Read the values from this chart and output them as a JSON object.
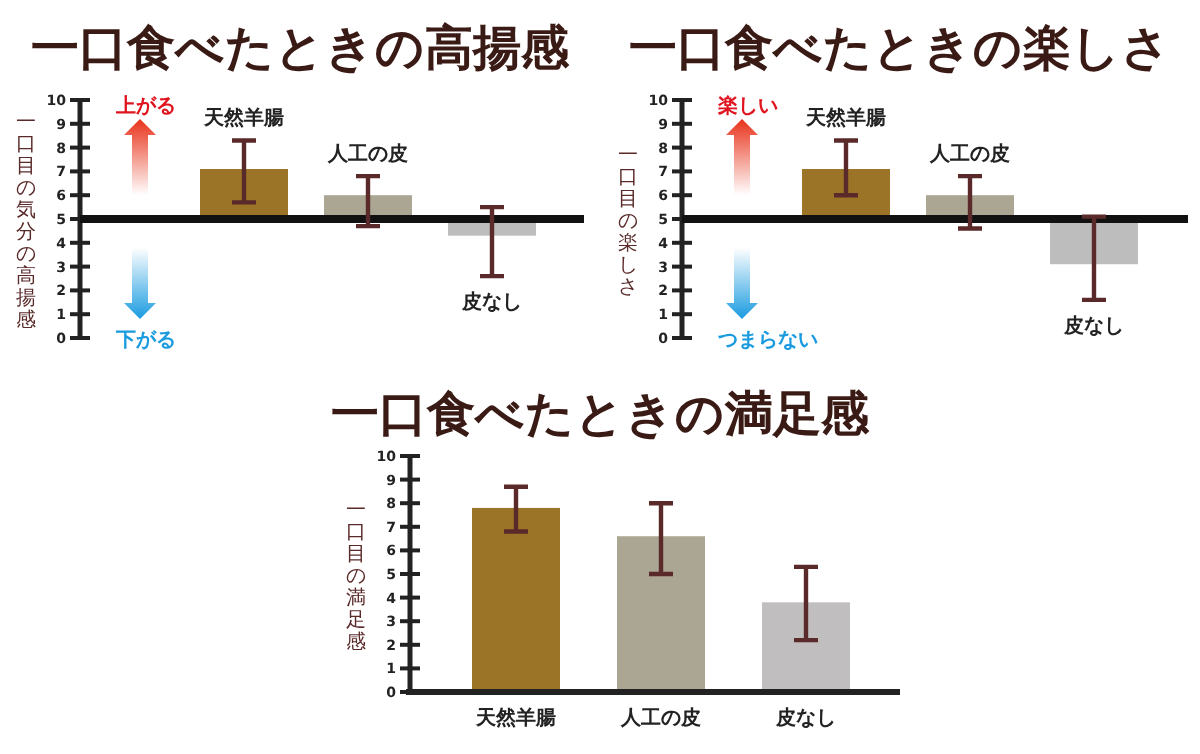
{
  "chart_data": [
    {
      "type": "bar",
      "title": "一口食べたときの高揚感",
      "ylabel": "一口目の気分の高揚感",
      "categories": [
        "天然羊腸",
        "人工の皮",
        "皮なし"
      ],
      "base": [
        5,
        5,
        5
      ],
      "values": [
        2.1,
        1.0,
        -0.7
      ],
      "errors": [
        [
          5.7,
          8.3
        ],
        [
          4.7,
          6.8
        ],
        [
          2.6,
          5.5
        ]
      ],
      "colors": [
        "#9b7428",
        "#aba593",
        "#bdbdbd"
      ],
      "ylim": [
        0,
        10
      ],
      "yticks": [
        0,
        1,
        2,
        3,
        4,
        5,
        6,
        7,
        8,
        9,
        10
      ],
      "ref_lines": [
        {
          "axis": "y",
          "value": 5,
          "color": "#111111"
        }
      ],
      "annotations": [
        "上がる",
        "下がる"
      ],
      "grid": false
    },
    {
      "type": "bar",
      "title": "一口食べたときの楽しさ",
      "ylabel": "一口目の楽しさ",
      "categories": [
        "天然羊腸",
        "人工の皮",
        "皮なし"
      ],
      "base": [
        5,
        5,
        5
      ],
      "values": [
        2.1,
        1.0,
        -1.9
      ],
      "errors": [
        [
          6.0,
          8.3
        ],
        [
          4.6,
          6.8
        ],
        [
          1.6,
          5.1
        ]
      ],
      "colors": [
        "#9b7428",
        "#aba593",
        "#bdbdbd"
      ],
      "ylim": [
        0,
        10
      ],
      "yticks": [
        0,
        1,
        2,
        3,
        4,
        5,
        6,
        7,
        8,
        9,
        10
      ],
      "ref_lines": [
        {
          "axis": "y",
          "value": 5,
          "color": "#111111"
        }
      ],
      "annotations": [
        "楽しい",
        "つまらない"
      ],
      "grid": false
    },
    {
      "type": "bar",
      "title": "一口食べたときの満足感",
      "ylabel": "一口目の満足感",
      "categories": [
        "天然羊腸",
        "人工の皮",
        "皮なし"
      ],
      "values": [
        7.8,
        6.6,
        3.8
      ],
      "errors": [
        [
          6.8,
          8.7
        ],
        [
          5.0,
          8.0
        ],
        [
          2.2,
          5.3
        ]
      ],
      "colors": [
        "#9b7428",
        "#aba593",
        "#c0bebe"
      ],
      "ylim": [
        0,
        10
      ],
      "yticks": [
        0,
        1,
        2,
        3,
        4,
        5,
        6,
        7,
        8,
        9,
        10
      ],
      "grid": false
    }
  ]
}
